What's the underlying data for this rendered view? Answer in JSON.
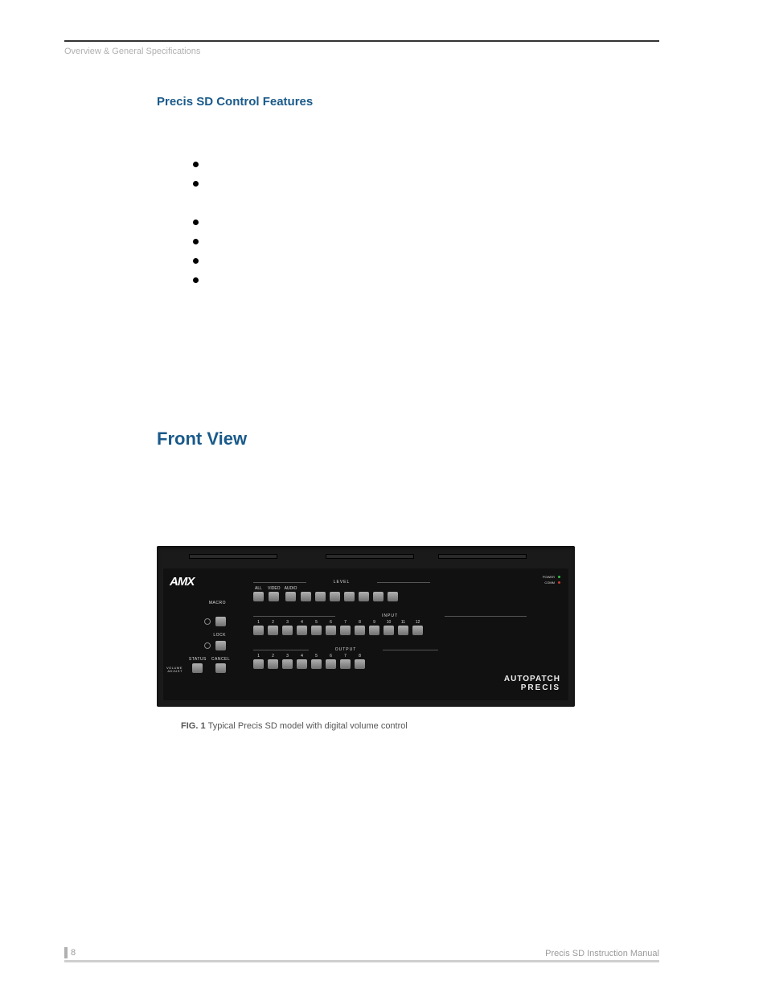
{
  "header": {
    "breadcrumb": "Overview & General Specifications"
  },
  "section_title": "Precis SD Control Features",
  "main_heading": "Front View",
  "figure_caption": "Typical Precis SD model with digital volume control",
  "device": {
    "logo": "AMX",
    "left": {
      "macro": "MACRO",
      "lock": "LOCK",
      "status": "STATUS",
      "cancel": "CANCEL",
      "volume_adjust": "VOLUME\nADJUST"
    },
    "level": {
      "title": "LEVEL",
      "labels": [
        "ALL",
        "VIDEO",
        "AUDIO",
        "",
        "",
        "",
        "",
        "",
        "",
        ""
      ]
    },
    "input": {
      "title": "INPUT",
      "labels": [
        "1",
        "2",
        "3",
        "4",
        "5",
        "6",
        "7",
        "8",
        "9",
        "10",
        "11",
        "12"
      ]
    },
    "output": {
      "title": "OUTPUT",
      "labels": [
        "1",
        "2",
        "3",
        "4",
        "5",
        "6",
        "7",
        "8"
      ]
    },
    "indicators": {
      "power": {
        "label": "POWER",
        "color": "#30c040"
      },
      "comm": {
        "label": "COMM",
        "color": "#c04030"
      }
    },
    "brand": {
      "line1": "AUTOPATCH",
      "line2": "PRECIS"
    }
  },
  "footer": {
    "page_number": "8",
    "manual_title": "Precis SD Instruction Manual"
  },
  "colors": {
    "heading": "#1a5a8a",
    "header_text": "#b0b0b0",
    "device_bg": "#1a1a1a"
  }
}
